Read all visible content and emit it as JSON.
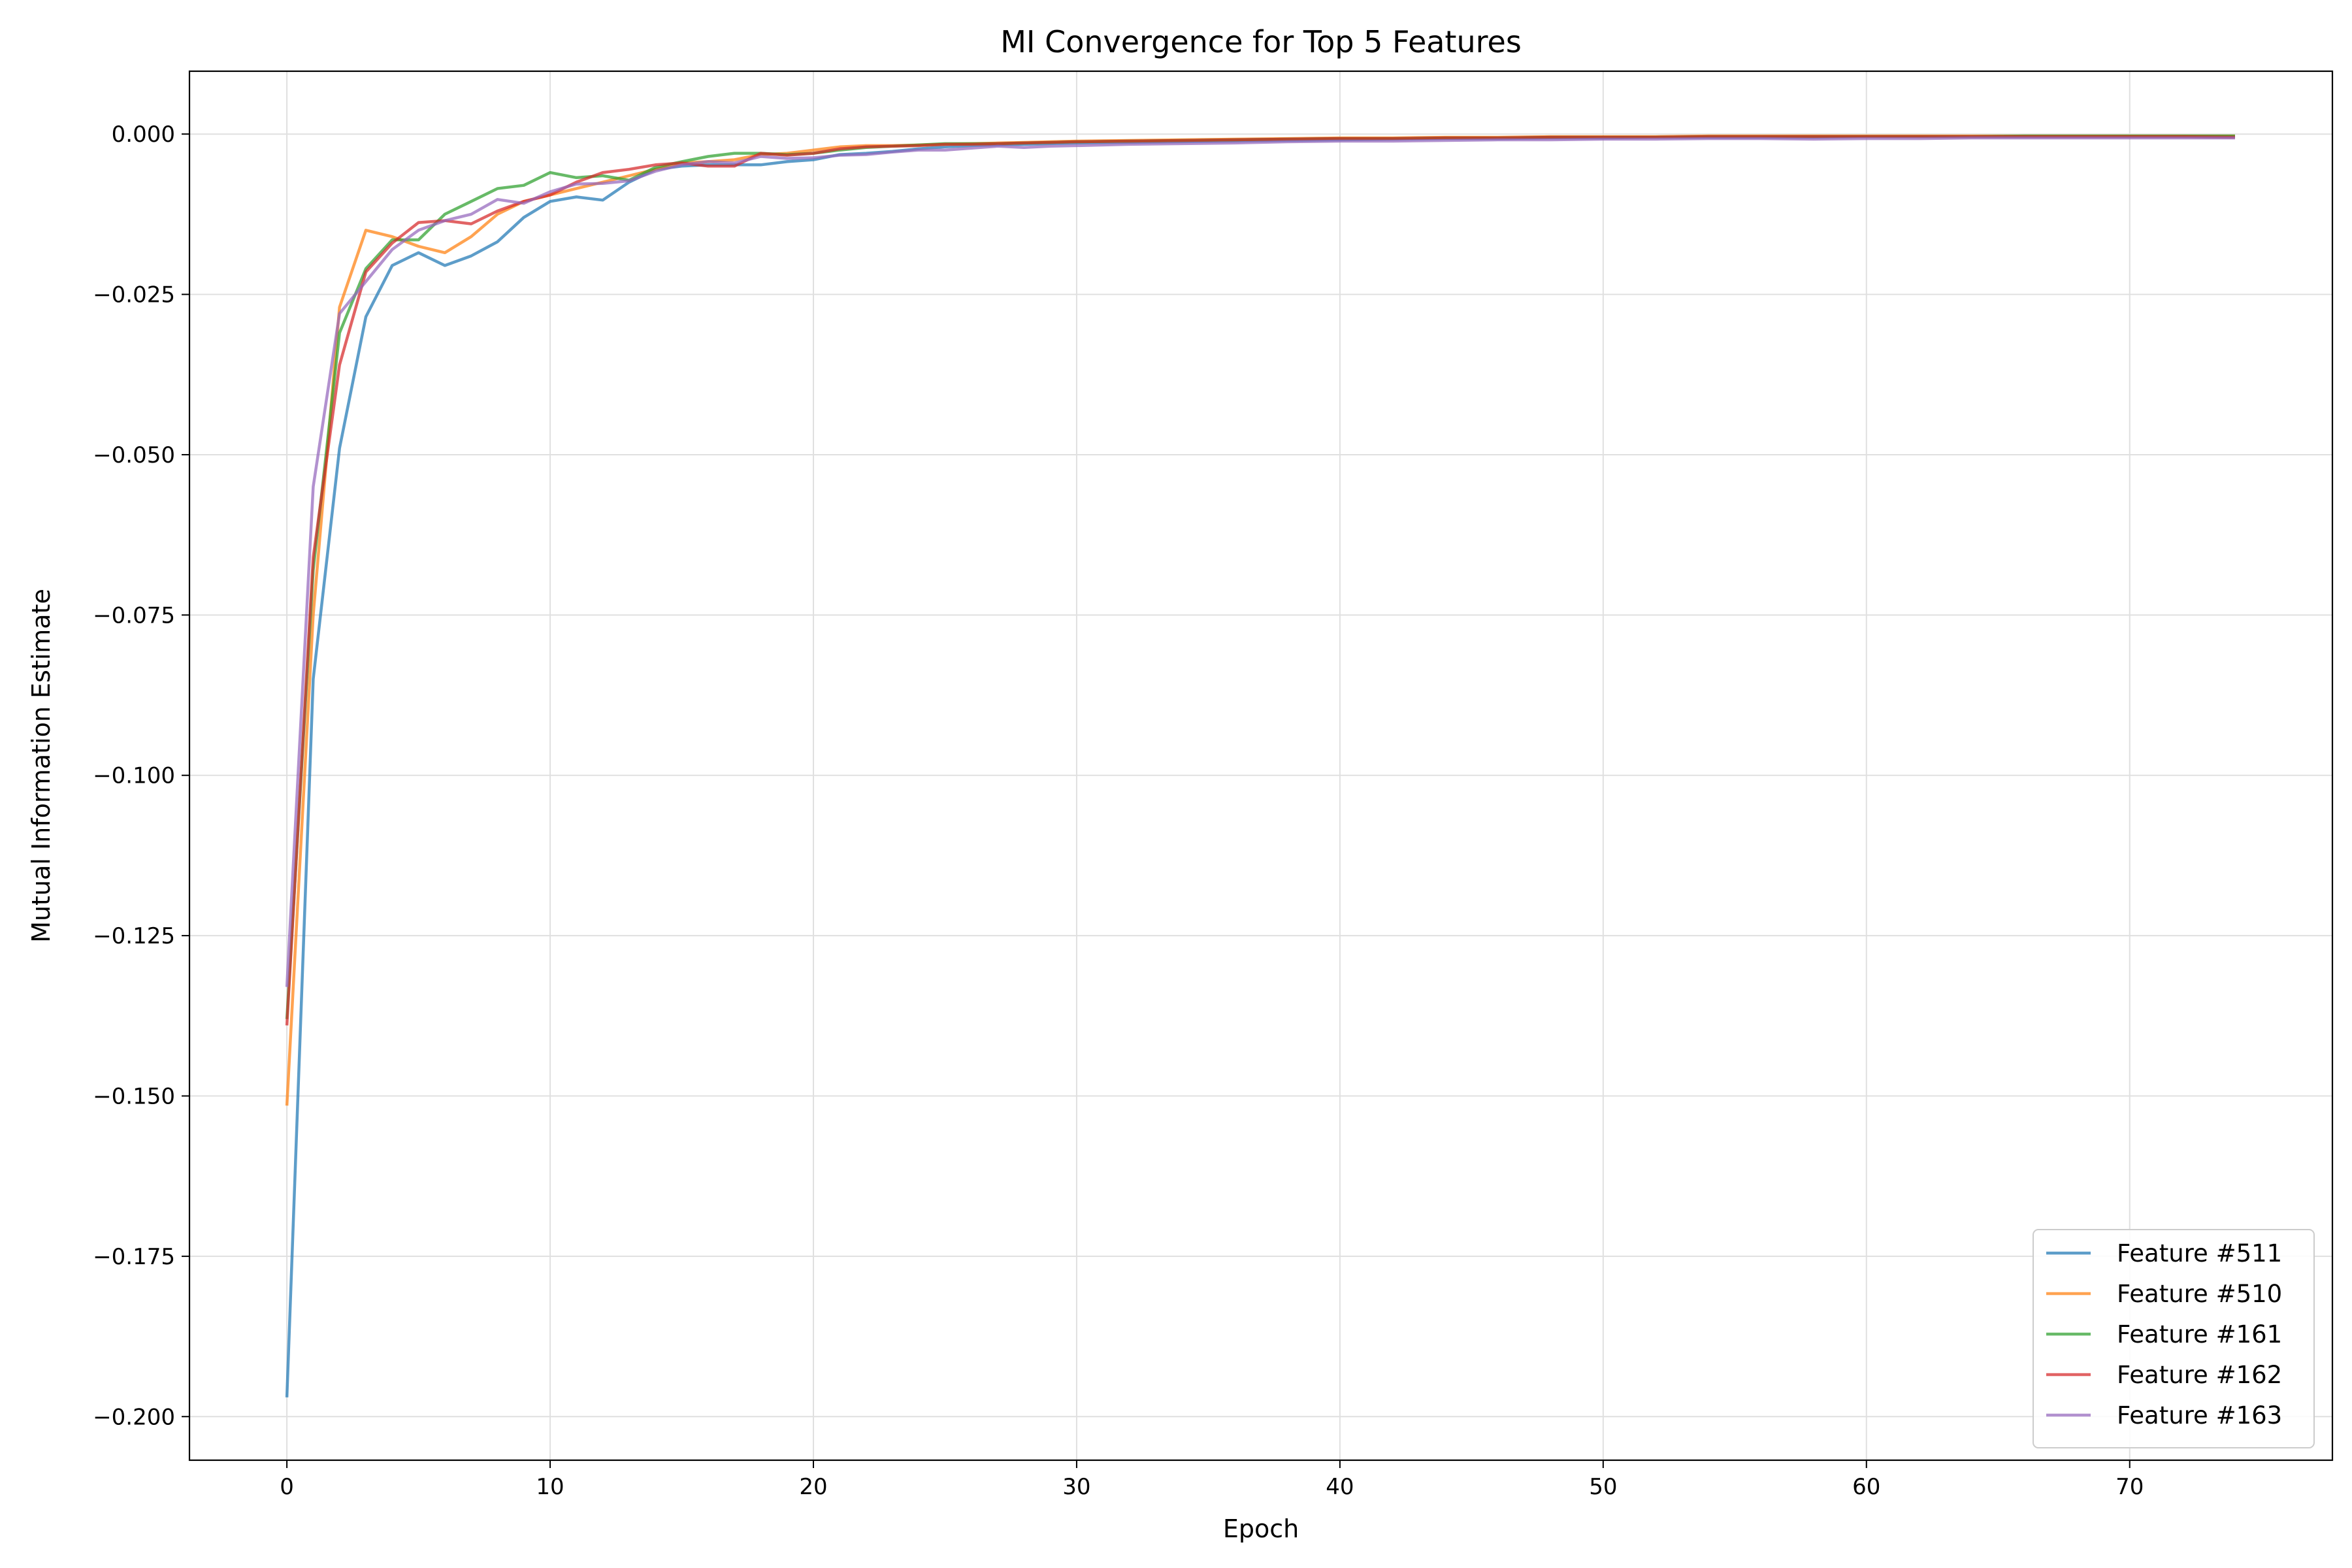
{
  "chart_data": {
    "type": "line",
    "title": "MI Convergence for Top 5 Features",
    "xlabel": "Epoch",
    "ylabel": "Mutual Information Estimate",
    "xlim": [
      -3.7,
      77.7
    ],
    "ylim": [
      -0.2068,
      0.0098
    ],
    "xticks": [
      0,
      10,
      20,
      30,
      40,
      50,
      60,
      70
    ],
    "yticks": [
      0.0,
      -0.025,
      -0.05,
      -0.075,
      -0.1,
      -0.125,
      -0.15,
      -0.175,
      -0.2
    ],
    "ytick_labels": [
      "0.000",
      "−0.025",
      "−0.050",
      "−0.075",
      "−0.100",
      "−0.125",
      "−0.150",
      "−0.175",
      "−0.200"
    ],
    "grid": true,
    "legend_position": "bottom-right",
    "series": [
      {
        "name": "Feature #511",
        "color": "#1f77b4",
        "x": [
          0,
          1,
          2,
          3,
          4,
          5,
          6,
          7,
          8,
          9,
          10,
          11,
          12,
          13,
          14,
          15,
          16,
          17,
          18,
          19,
          20,
          21,
          22,
          23,
          24,
          25,
          26,
          27,
          28,
          29,
          30,
          32,
          34,
          36,
          38,
          40,
          42,
          44,
          46,
          48,
          50,
          52,
          54,
          56,
          58,
          60,
          62,
          64,
          66,
          68,
          70,
          72,
          74
        ],
        "values": [
          -0.197,
          -0.085,
          -0.049,
          -0.0285,
          -0.0205,
          -0.0185,
          -0.0205,
          -0.019,
          -0.0168,
          -0.013,
          -0.0105,
          -0.0098,
          -0.0103,
          -0.0075,
          -0.0055,
          -0.005,
          -0.0048,
          -0.0048,
          -0.0048,
          -0.0043,
          -0.004,
          -0.0032,
          -0.003,
          -0.0027,
          -0.0023,
          -0.002,
          -0.0018,
          -0.0017,
          -0.0016,
          -0.0015,
          -0.0014,
          -0.0013,
          -0.0012,
          -0.0011,
          -0.001,
          -0.0009,
          -0.0008,
          -0.0007,
          -0.0007,
          -0.0006,
          -0.0006,
          -0.0005,
          -0.0005,
          -0.0005,
          -0.0005,
          -0.0004,
          -0.0004,
          -0.0004,
          -0.0004,
          -0.0004,
          -0.0004,
          -0.0004,
          -0.0004
        ]
      },
      {
        "name": "Feature #510",
        "color": "#ff7f0e",
        "x": [
          0,
          1,
          2,
          3,
          4,
          5,
          6,
          7,
          8,
          9,
          10,
          11,
          12,
          13,
          14,
          15,
          16,
          17,
          18,
          19,
          20,
          21,
          22,
          23,
          24,
          25,
          26,
          27,
          28,
          29,
          30,
          32,
          34,
          36,
          38,
          40,
          42,
          44,
          46,
          48,
          50,
          52,
          54,
          56,
          58,
          60,
          62,
          64,
          66,
          68,
          70,
          72,
          74
        ],
        "values": [
          -0.1515,
          -0.075,
          -0.027,
          -0.015,
          -0.016,
          -0.0175,
          -0.0185,
          -0.016,
          -0.0125,
          -0.0105,
          -0.0095,
          -0.0085,
          -0.0075,
          -0.0065,
          -0.0055,
          -0.0045,
          -0.0043,
          -0.004,
          -0.0032,
          -0.003,
          -0.0025,
          -0.002,
          -0.0018,
          -0.0018,
          -0.0017,
          -0.0016,
          -0.0015,
          -0.0014,
          -0.0013,
          -0.0012,
          -0.0011,
          -0.001,
          -0.0009,
          -0.0008,
          -0.0007,
          -0.0006,
          -0.0006,
          -0.0005,
          -0.0005,
          -0.0004,
          -0.0004,
          -0.0004,
          -0.0003,
          -0.0003,
          -0.0003,
          -0.0003,
          -0.0003,
          -0.0003,
          -0.0003,
          -0.0003,
          -0.0003,
          -0.0003,
          -0.0003
        ]
      },
      {
        "name": "Feature #161",
        "color": "#2ca02c",
        "x": [
          0,
          1,
          2,
          3,
          4,
          5,
          6,
          7,
          8,
          9,
          10,
          11,
          12,
          13,
          14,
          15,
          16,
          17,
          18,
          19,
          20,
          21,
          22,
          23,
          24,
          25,
          26,
          27,
          28,
          29,
          30,
          32,
          34,
          36,
          38,
          40,
          42,
          44,
          46,
          48,
          50,
          52,
          54,
          56,
          58,
          60,
          62,
          64,
          66,
          68,
          70,
          72,
          74
        ],
        "values": [
          -0.138,
          -0.068,
          -0.031,
          -0.021,
          -0.0165,
          -0.0165,
          -0.0125,
          -0.0105,
          -0.0085,
          -0.008,
          -0.006,
          -0.0068,
          -0.0065,
          -0.0072,
          -0.0052,
          -0.0043,
          -0.0035,
          -0.003,
          -0.003,
          -0.0032,
          -0.003,
          -0.0025,
          -0.0021,
          -0.0019,
          -0.0017,
          -0.0015,
          -0.0015,
          -0.0015,
          -0.0014,
          -0.0013,
          -0.0012,
          -0.0011,
          -0.001,
          -0.0009,
          -0.0008,
          -0.0007,
          -0.0007,
          -0.0006,
          -0.0006,
          -0.0005,
          -0.0005,
          -0.0005,
          -0.0004,
          -0.0004,
          -0.0004,
          -0.0004,
          -0.0004,
          -0.0004,
          -0.0003,
          -0.0003,
          -0.0003,
          -0.0003,
          -0.0003
        ]
      },
      {
        "name": "Feature #162",
        "color": "#d62728",
        "x": [
          0,
          1,
          2,
          3,
          4,
          5,
          6,
          7,
          8,
          9,
          10,
          11,
          12,
          13,
          14,
          15,
          16,
          17,
          18,
          19,
          20,
          21,
          22,
          23,
          24,
          25,
          26,
          27,
          28,
          29,
          30,
          32,
          34,
          36,
          38,
          40,
          42,
          44,
          46,
          48,
          50,
          52,
          54,
          56,
          58,
          60,
          62,
          64,
          66,
          68,
          70,
          72,
          74
        ],
        "values": [
          -0.139,
          -0.066,
          -0.036,
          -0.0215,
          -0.017,
          -0.0138,
          -0.0135,
          -0.014,
          -0.012,
          -0.0105,
          -0.0095,
          -0.0075,
          -0.006,
          -0.0055,
          -0.0048,
          -0.0045,
          -0.005,
          -0.005,
          -0.003,
          -0.0033,
          -0.003,
          -0.0023,
          -0.002,
          -0.0019,
          -0.0018,
          -0.0016,
          -0.0016,
          -0.0015,
          -0.0014,
          -0.0013,
          -0.0012,
          -0.0011,
          -0.001,
          -0.0009,
          -0.0008,
          -0.0007,
          -0.0007,
          -0.0006,
          -0.0006,
          -0.0005,
          -0.0005,
          -0.0005,
          -0.0004,
          -0.0004,
          -0.0004,
          -0.0004,
          -0.0004,
          -0.0004,
          -0.0004,
          -0.0004,
          -0.0004,
          -0.0004,
          -0.0005
        ]
      },
      {
        "name": "Feature #163",
        "color": "#9467bd",
        "x": [
          0,
          1,
          2,
          3,
          4,
          5,
          6,
          7,
          8,
          9,
          10,
          11,
          12,
          13,
          14,
          15,
          16,
          17,
          18,
          19,
          20,
          21,
          22,
          23,
          24,
          25,
          26,
          27,
          28,
          29,
          30,
          32,
          34,
          36,
          38,
          40,
          42,
          44,
          46,
          48,
          50,
          52,
          54,
          56,
          58,
          60,
          62,
          64,
          66,
          68,
          70,
          72,
          74
        ],
        "values": [
          -0.133,
          -0.055,
          -0.028,
          -0.023,
          -0.018,
          -0.015,
          -0.0135,
          -0.0125,
          -0.0102,
          -0.0108,
          -0.009,
          -0.0078,
          -0.0077,
          -0.0073,
          -0.0058,
          -0.0048,
          -0.0043,
          -0.0045,
          -0.0035,
          -0.0038,
          -0.0037,
          -0.0033,
          -0.0032,
          -0.0028,
          -0.0025,
          -0.0025,
          -0.0022,
          -0.0019,
          -0.0021,
          -0.0019,
          -0.0018,
          -0.0016,
          -0.0015,
          -0.0014,
          -0.0012,
          -0.0011,
          -0.0011,
          -0.001,
          -0.0009,
          -0.0009,
          -0.0008,
          -0.0008,
          -0.0007,
          -0.0007,
          -0.0008,
          -0.0007,
          -0.0007,
          -0.0006,
          -0.0006,
          -0.0006,
          -0.0006,
          -0.0006,
          -0.0006
        ]
      }
    ]
  }
}
